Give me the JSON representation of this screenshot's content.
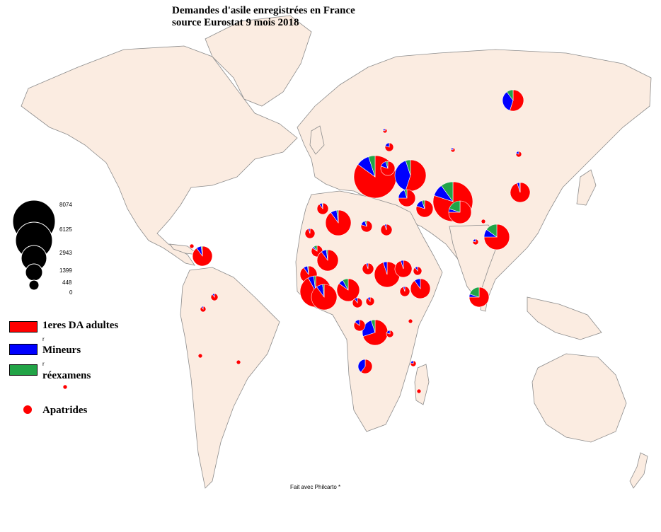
{
  "title_line1": "Demandes d'asile enregistrées en France",
  "title_line2": "source Eurostat 9 mois 2018",
  "colors": {
    "premieres_da_adultes": "#ff0000",
    "mineurs": "#0000ff",
    "reexamens": "#22a447",
    "apatrides": "#ff0000",
    "land": "#fbece1",
    "border": "#8c8c8c"
  },
  "legend": {
    "sizes": [
      "8074",
      "6125",
      "2943",
      "1399",
      "448",
      "0"
    ],
    "premieres_da_adultes": "1eres DA adultes",
    "mineurs": "Mineurs",
    "reexamens": "réexamens",
    "apatrides": "Apatrides",
    "stray_mark": "r"
  },
  "credit": "Fait avec Philcarto *"
}
